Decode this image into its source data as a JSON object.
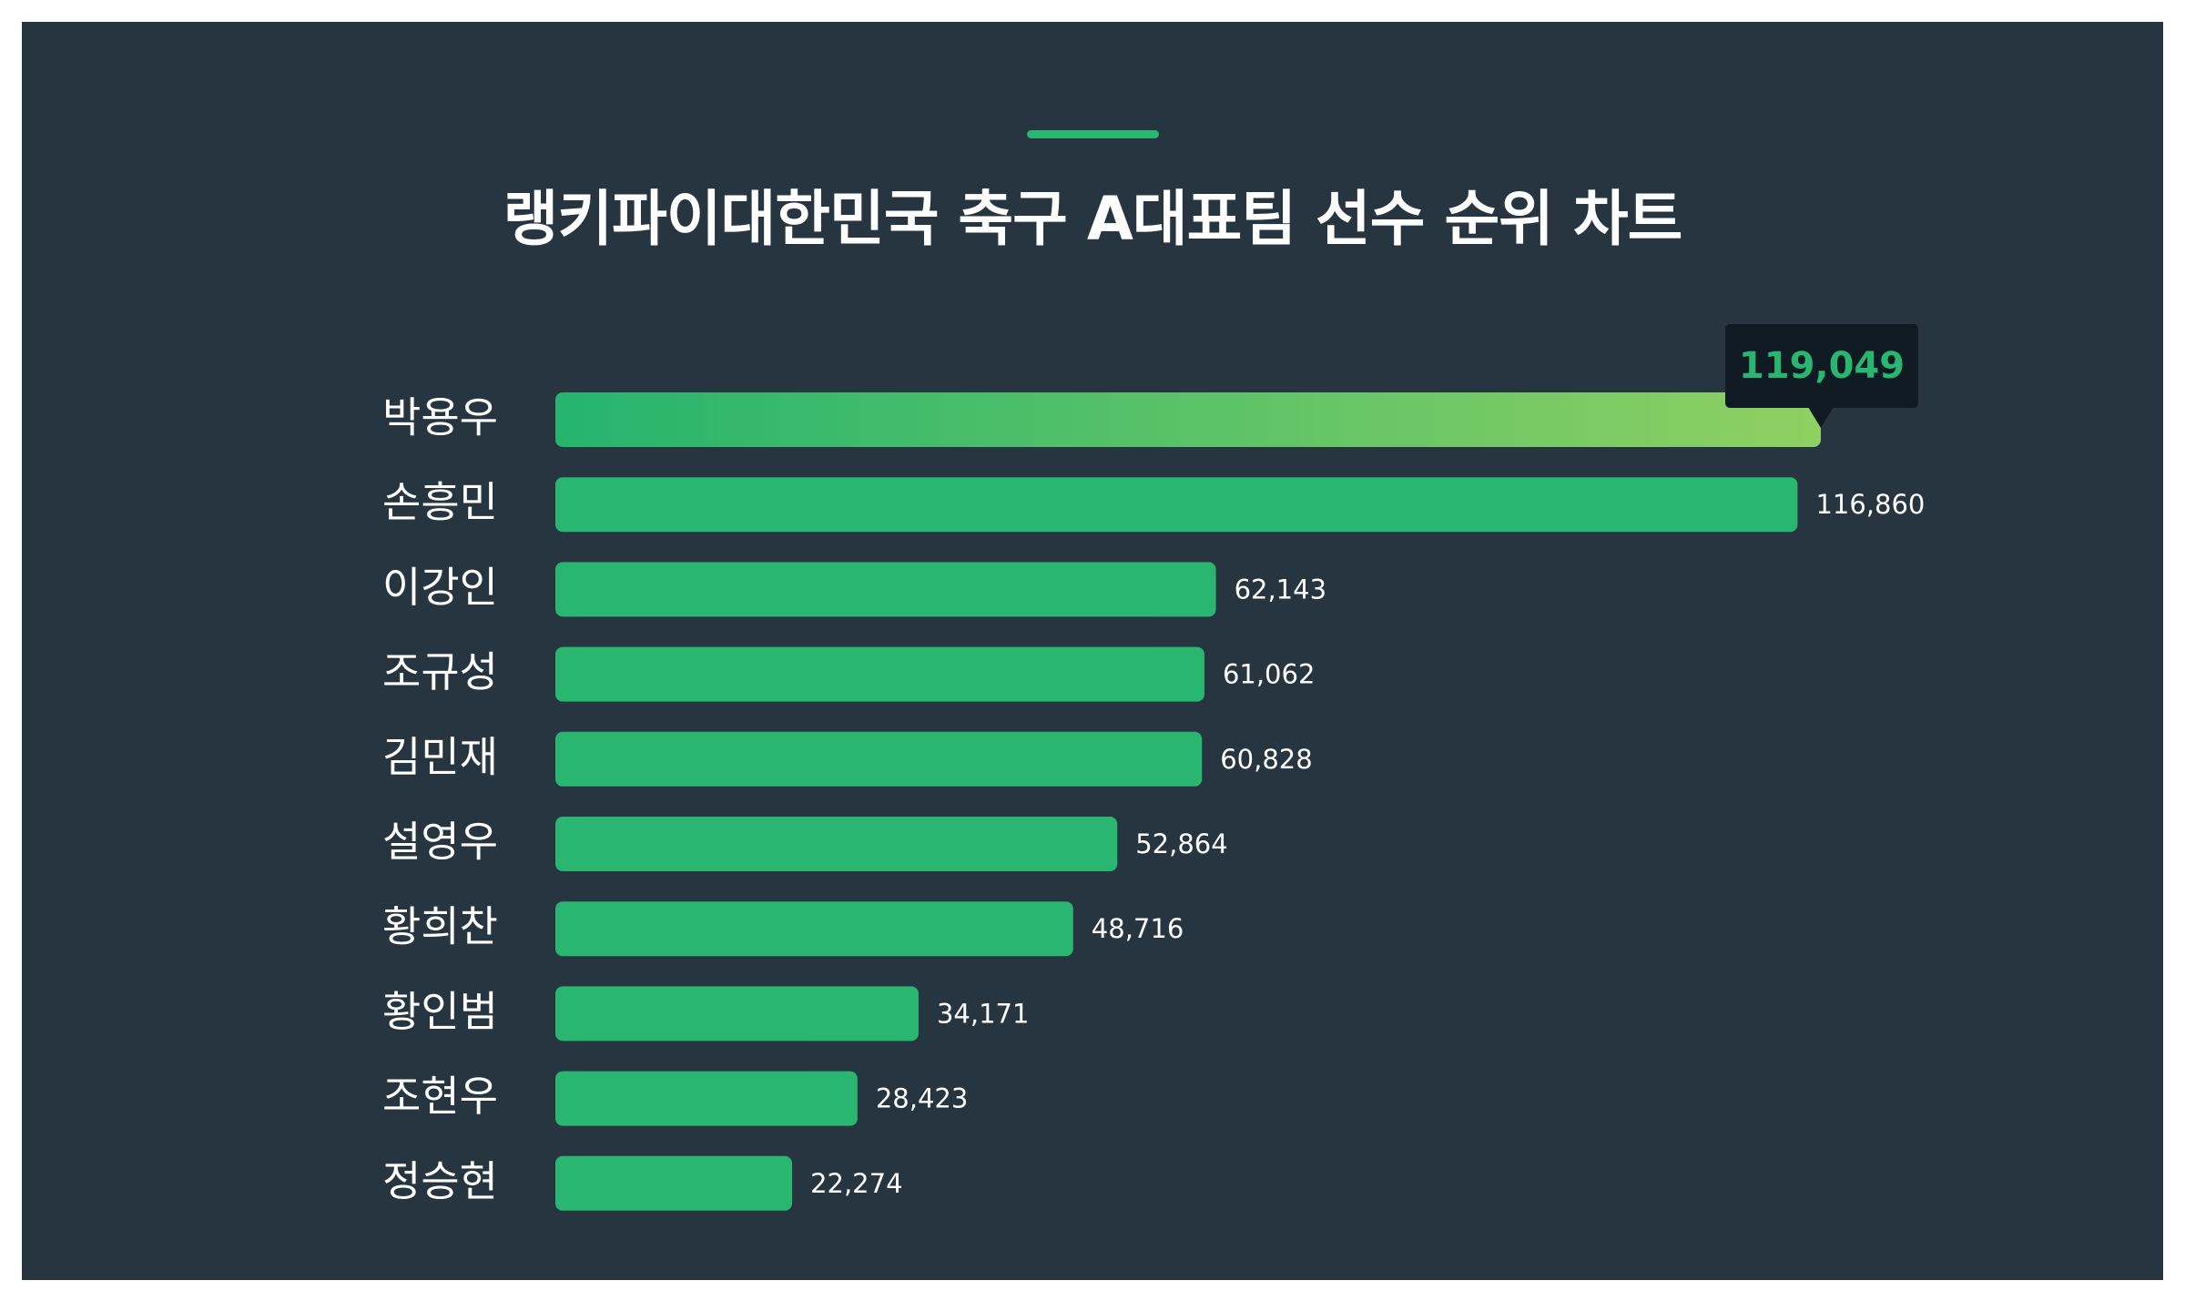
{
  "title": "랭키파이대한민국 축구 A대표팀 선수 순위 차트",
  "colors": {
    "background": "#263540",
    "bar": "#29b670",
    "top_bar_gradient_start": "#25b46e",
    "top_bar_gradient_end": "#8fd062",
    "accent": "#29b670",
    "tooltip_bg": "#0f1a22",
    "tooltip_text": "#29b670",
    "label_text": "#ffffff"
  },
  "chart_data": {
    "type": "bar",
    "orientation": "horizontal",
    "title": "랭키파이대한민국 축구 A대표팀 선수 순위 차트",
    "categories": [
      "박용우",
      "손흥민",
      "이강인",
      "조규성",
      "김민재",
      "설영우",
      "황희찬",
      "황인범",
      "조현우",
      "정승현"
    ],
    "values": [
      119049,
      116860,
      62143,
      61062,
      60828,
      52864,
      48716,
      34171,
      28423,
      22274
    ],
    "value_labels": [
      "119,049",
      "116,860",
      "62,143",
      "61,062",
      "60,828",
      "52,864",
      "48,716",
      "34,171",
      "28,423",
      "22,274"
    ],
    "highlighted_index": 0,
    "grid": false,
    "legend": "none"
  }
}
